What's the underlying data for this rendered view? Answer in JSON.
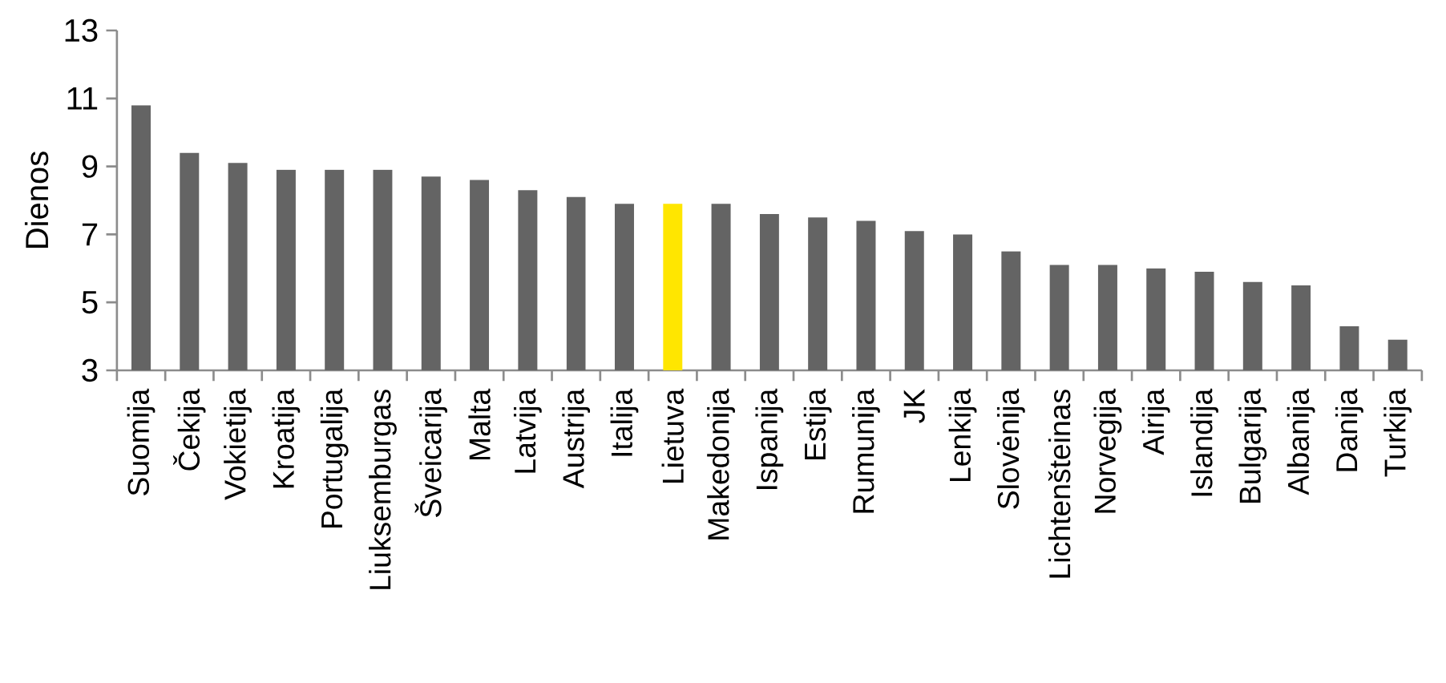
{
  "chart_data": {
    "type": "bar",
    "ylabel": "Dienos",
    "categories": [
      "Suomija",
      "Čekija",
      "Vokietija",
      "Kroatija",
      "Portugalija",
      "Liuksemburgas",
      "Šveicarija",
      "Malta",
      "Latvija",
      "Austrija",
      "Italija",
      "Lietuva",
      "Makedonija",
      "Ispanija",
      "Estija",
      "Rumunija",
      "JK",
      "Lenkija",
      "Slovėnija",
      "Lichtenšteinas",
      "Norvegija",
      "Airija",
      "Islandija",
      "Bulgarija",
      "Albanija",
      "Danija",
      "Turkija"
    ],
    "values": [
      10.8,
      9.4,
      9.1,
      8.9,
      8.9,
      8.9,
      8.7,
      8.6,
      8.3,
      8.1,
      7.9,
      7.9,
      7.9,
      7.6,
      7.5,
      7.4,
      7.1,
      7.0,
      6.5,
      6.1,
      6.1,
      6.0,
      5.9,
      5.6,
      5.5,
      4.3,
      3.9
    ],
    "colors": [
      "#646464",
      "#646464",
      "#646464",
      "#646464",
      "#646464",
      "#646464",
      "#646464",
      "#646464",
      "#646464",
      "#646464",
      "#646464",
      "#ffe600",
      "#646464",
      "#646464",
      "#646464",
      "#646464",
      "#646464",
      "#646464",
      "#646464",
      "#646464",
      "#646464",
      "#646464",
      "#646464",
      "#646464",
      "#646464",
      "#646464",
      "#646464"
    ],
    "ylim": [
      3,
      13
    ],
    "yticks": [
      3,
      5,
      7,
      9,
      11,
      13
    ],
    "grid": false
  }
}
